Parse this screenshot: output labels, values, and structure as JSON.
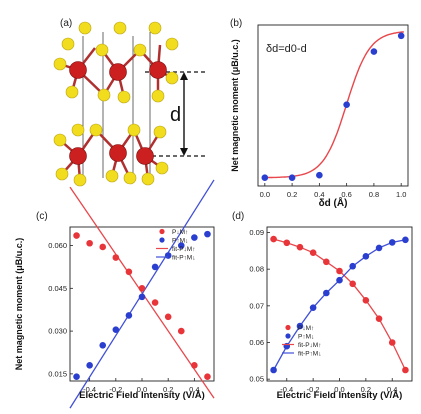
{
  "figure": {
    "colors": {
      "red": "#e8353a",
      "blue": "#2a3fd0",
      "red_line": "#e8474b",
      "blue_line": "#4050d8",
      "atom_yellow": "#f2dc1e",
      "atom_red": "#cc1f1f"
    }
  },
  "panel_a": {
    "label": "(a)",
    "dimension_label": "d"
  },
  "chart_data": [
    {
      "panel": "(b)",
      "type": "scatter",
      "annotation": "δd=d0-d",
      "xlabel": "δd (Å)",
      "ylabel": "Net magnetic moment (μB/u.c.)",
      "xlim": [
        -0.05,
        1.05
      ],
      "ylim": [
        -0.005,
        0.092
      ],
      "xticks": [
        "0.0",
        "0.2",
        "0.4",
        "0.6",
        "0.8",
        "1.0"
      ],
      "yticks": [],
      "series": [
        {
          "points": [
            [
              0.0,
              0.0
            ],
            [
              0.2,
              0.0
            ],
            [
              0.4,
              0.0015
            ],
            [
              0.6,
              0.044
            ],
            [
              0.8,
              0.076
            ],
            [
              1.0,
              0.0855
            ]
          ]
        }
      ],
      "fit": "sigmoid"
    },
    {
      "panel": "(c)",
      "type": "scatter",
      "xlabel": "Electric Field Intensity (V/Å)",
      "ylabel": "Net magnetic moment (μB/u.c.)",
      "xlim": [
        -0.55,
        0.55
      ],
      "ylim": [
        0.0125,
        0.0665
      ],
      "xticks": [
        "-0.4",
        "-0.2",
        "0.0",
        "0.2",
        "0.4"
      ],
      "yticks": [
        "0.015",
        "0.030",
        "0.045",
        "0.060"
      ],
      "legend": [
        "P↓M↑",
        "P↑M↓",
        "fit-P↓M↑",
        "fit-P↑M↓"
      ],
      "legend_position": "top-right",
      "series": [
        {
          "name": "P↓M↑",
          "color": "red",
          "x": [
            -0.5,
            -0.4,
            -0.3,
            -0.2,
            -0.1,
            0.0,
            0.1,
            0.2,
            0.3,
            0.4,
            0.5
          ],
          "y": [
            0.0635,
            0.0608,
            0.0595,
            0.0558,
            0.0508,
            0.045,
            0.04,
            0.035,
            0.03,
            0.018,
            0.014
          ]
        },
        {
          "name": "P↑M↓",
          "color": "blue",
          "x": [
            -0.5,
            -0.4,
            -0.3,
            -0.2,
            -0.1,
            0.0,
            0.1,
            0.2,
            0.3,
            0.4,
            0.5
          ],
          "y": [
            0.014,
            0.018,
            0.025,
            0.0305,
            0.0355,
            0.042,
            0.0525,
            0.0565,
            0.06,
            0.0628,
            0.064
          ]
        }
      ],
      "fits": [
        {
          "name": "fit-P↓M↑",
          "color": "red",
          "from": [
            -0.55,
            0.0805
          ],
          "to": [
            0.55,
            0.0065
          ]
        },
        {
          "name": "fit-P↑M↓",
          "color": "blue",
          "from": [
            -0.55,
            0.003
          ],
          "to": [
            0.55,
            0.083
          ]
        }
      ]
    },
    {
      "panel": "(d)",
      "type": "scatter",
      "xlabel": "Electric Field Intensity (V/Å)",
      "ylabel": "",
      "xlim": [
        -0.55,
        0.55
      ],
      "ylim": [
        0.0495,
        0.0915
      ],
      "xticks": [
        "-0.4",
        "-0.2",
        "0.0",
        "0.2",
        "0.4"
      ],
      "yticks": [
        "0.05",
        "0.06",
        "0.07",
        "0.08",
        "0.09"
      ],
      "legend": [
        "P↓M↑",
        "P↑M↓",
        "fit-P↓M↑",
        "fit-P↑M↓"
      ],
      "legend_position": "lower-left",
      "series": [
        {
          "name": "P↓M↑",
          "color": "red",
          "x": [
            -0.5,
            -0.4,
            -0.3,
            -0.2,
            -0.1,
            0.0,
            0.1,
            0.2,
            0.3,
            0.4,
            0.5
          ],
          "y": [
            0.0882,
            0.0872,
            0.086,
            0.0845,
            0.082,
            0.0795,
            0.076,
            0.0715,
            0.0665,
            0.06,
            0.0525
          ]
        },
        {
          "name": "P↑M↓",
          "color": "blue",
          "x": [
            -0.5,
            -0.4,
            -0.3,
            -0.2,
            -0.1,
            0.0,
            0.1,
            0.2,
            0.3,
            0.4,
            0.5
          ],
          "y": [
            0.0525,
            0.059,
            0.0645,
            0.0695,
            0.0735,
            0.077,
            0.0808,
            0.0835,
            0.0858,
            0.0873,
            0.088
          ]
        }
      ]
    }
  ]
}
